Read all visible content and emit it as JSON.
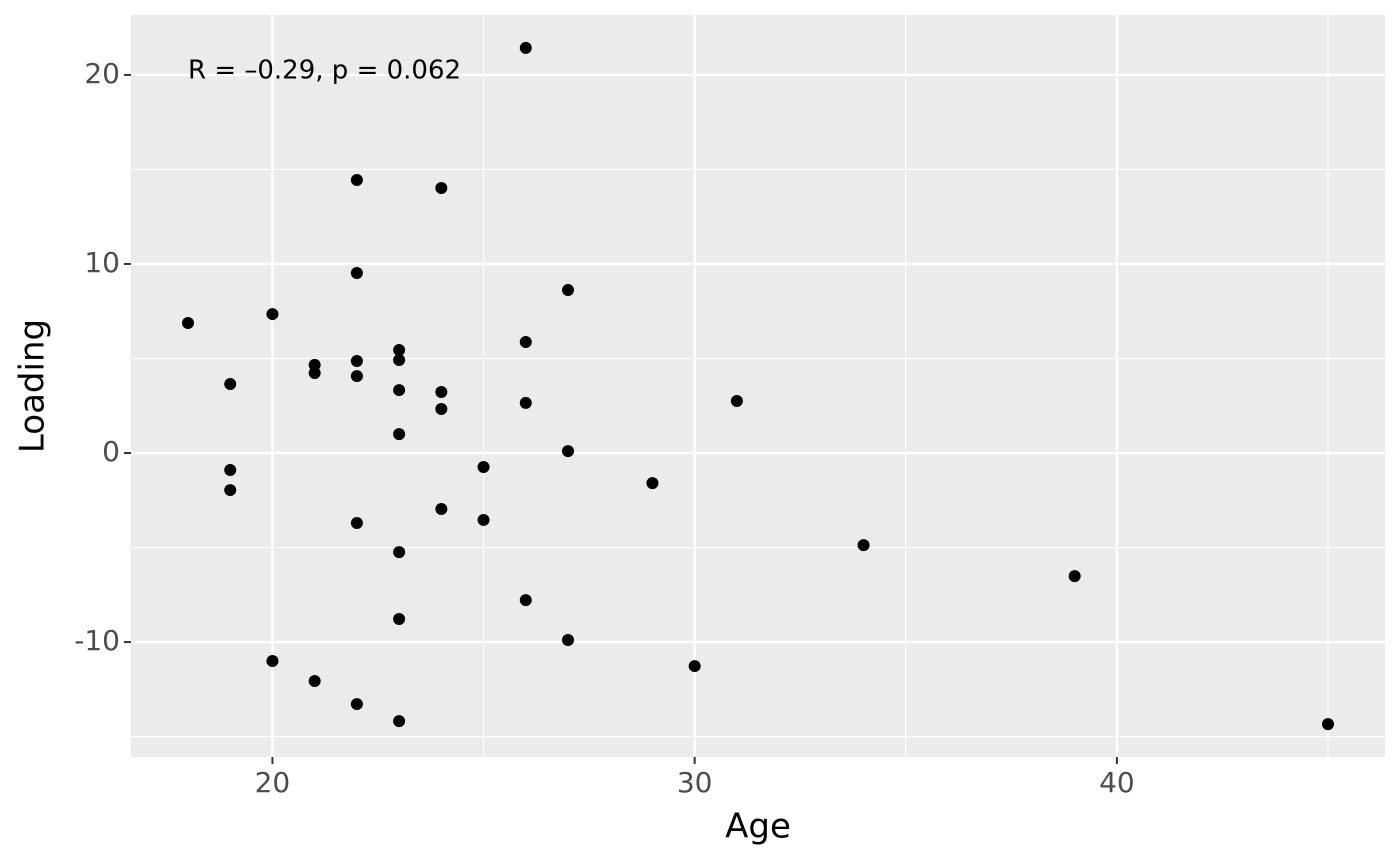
{
  "chart_data": {
    "type": "scatter",
    "x_label": "Age",
    "y_label": "Loading",
    "annotation": "R = –0.29, p = 0.062",
    "color": "#000000",
    "xlim": [
      16.65,
      46.35
    ],
    "ylim": [
      -16.08,
      23.17
    ],
    "xticks": [
      20,
      30,
      40
    ],
    "yticks": [
      -10,
      0,
      10,
      20
    ],
    "x_minor_breaks": [
      25,
      35,
      45
    ],
    "y_minor_breaks": [
      -15,
      -5,
      5,
      15
    ],
    "grid": true,
    "x": [
      18,
      19,
      19,
      19,
      20,
      20,
      21,
      21,
      21,
      22,
      22,
      22,
      22,
      22,
      22,
      23,
      23,
      23,
      23,
      23,
      23,
      23,
      24,
      24,
      24,
      24,
      25,
      25,
      26,
      26,
      26,
      26,
      27,
      27,
      27,
      29,
      30,
      31,
      34,
      39,
      45
    ],
    "values": [
      6.88,
      3.65,
      -0.9,
      -1.96,
      7.35,
      -11.0,
      4.66,
      4.23,
      -12.06,
      14.44,
      9.52,
      4.87,
      4.07,
      -3.7,
      -13.28,
      5.45,
      4.92,
      3.33,
      1.0,
      -5.24,
      -8.78,
      -14.18,
      14.02,
      3.23,
      2.33,
      -2.96,
      -0.74,
      -3.54,
      21.43,
      5.87,
      2.65,
      -7.78,
      8.62,
      0.1,
      -9.89,
      -1.59,
      -11.27,
      2.75,
      -4.87,
      -6.51,
      -14.34
    ]
  }
}
